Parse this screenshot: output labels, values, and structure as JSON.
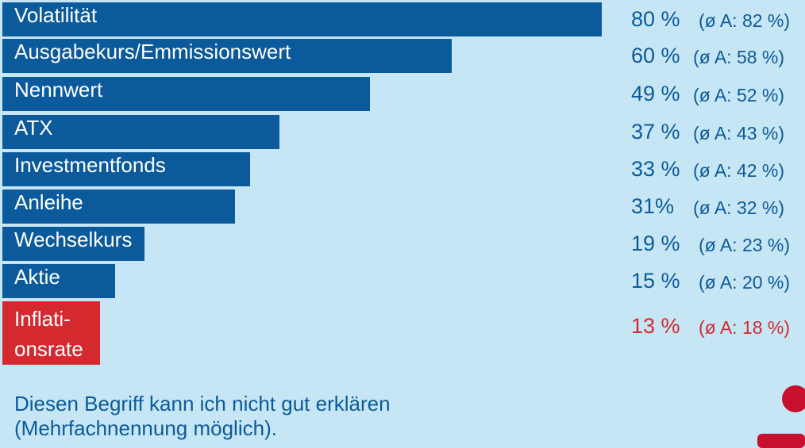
{
  "chart_data": {
    "type": "bar",
    "orientation": "horizontal",
    "categories": [
      "Volatilität",
      "Ausgabekurs/Emmissionswert",
      "Nennwert",
      "ATX",
      "Investmentfonds",
      "Anleihe",
      "Wechselkurs",
      "Aktie",
      "Inflati-\nonsrate"
    ],
    "values": [
      80,
      60,
      49,
      37,
      33,
      31,
      19,
      15,
      13
    ],
    "value_labels": [
      "80 %",
      "60 %",
      "49 %",
      "37 %",
      "33 %",
      "31%",
      "19 %",
      "15 %",
      "13 %"
    ],
    "average_labels": [
      "(ø A: 82 %)",
      "(ø A: 58 %)",
      "(ø A: 52 %)",
      "(ø A: 43 %)",
      "(ø A: 42 %)",
      "(ø A: 32 %)",
      "(ø A: 23 %)",
      "(ø A: 20 %)",
      "(ø A: 18 %)"
    ],
    "highlight_index": 8,
    "xlim": [
      0,
      100
    ],
    "colors": {
      "bar": "#0b5a9c",
      "highlight": "#d42a2f",
      "text": "#0b5a9c",
      "background": "#c6e6f6"
    }
  },
  "footnote": {
    "line1": "Diesen Begriff kann ich nicht gut erklären",
    "line2": "(Mehrfachnennung möglich)."
  },
  "logo_icon": "savings-bank-logo-icon"
}
